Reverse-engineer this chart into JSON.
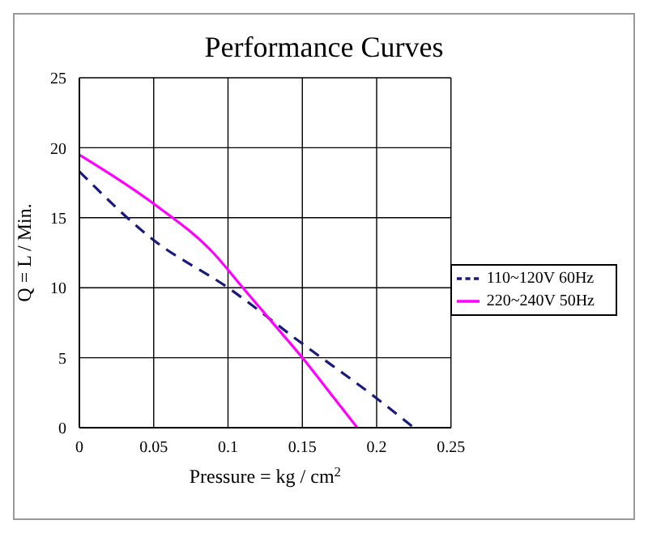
{
  "chart_data": {
    "type": "line",
    "title": "Performance Curves",
    "xlabel": "Pressure = kg / cm$^{2}$",
    "ylabel": "Q = L / Min.",
    "xlim": [
      0,
      0.25
    ],
    "xticks": [
      0,
      0.05,
      0.1,
      0.15,
      0.2,
      0.25
    ],
    "ylim": [
      0,
      25
    ],
    "yticks": [
      0,
      5,
      10,
      15,
      20,
      25
    ],
    "grid": true,
    "legend": "right",
    "marker": "none",
    "series": [
      {
        "name": "110~120V 60Hz",
        "color": "#1a1a7a",
        "line_style": "dashed",
        "x": [
          0,
          0.05,
          0.1,
          0.15,
          0.2,
          0.225
        ],
        "values": [
          18.3,
          13.4,
          10,
          6,
          2.1,
          0
        ]
      },
      {
        "name": "220~240V 50Hz",
        "color": "#ff00ff",
        "line_style": "solid",
        "x": [
          0,
          0.05,
          0.09,
          0.11,
          0.13,
          0.15,
          0.17,
          0.187
        ],
        "values": [
          19.5,
          16,
          12.5,
          10,
          7.5,
          5,
          2.3,
          0
        ]
      }
    ]
  }
}
